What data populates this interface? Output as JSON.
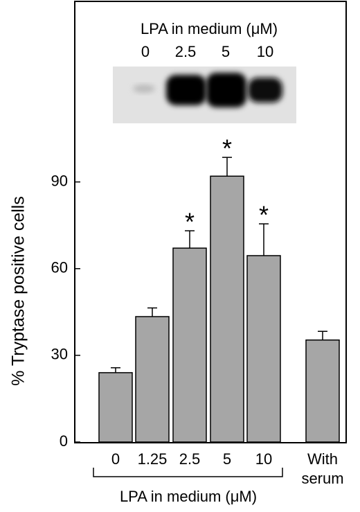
{
  "chart_data": {
    "type": "bar",
    "ylabel": "% Tryptase positive cells",
    "xlabel": "LPA in medium (μM)",
    "categories": [
      "0",
      "1.25",
      "2.5",
      "5",
      "10",
      "With serum"
    ],
    "values": [
      24,
      43.4,
      67.1,
      92,
      64.5,
      35.3
    ],
    "errors": [
      1.7,
      3,
      6,
      6.5,
      11,
      3
    ],
    "significance": [
      null,
      null,
      "*",
      "*",
      "*",
      null
    ],
    "color": "#a6a6a6",
    "ylim": [
      0,
      152
    ],
    "yticks": [
      0,
      30,
      60,
      90
    ],
    "inset_title": "LPA in medium (μM)",
    "inset_lanes": [
      "0",
      "2.5",
      "5",
      "10"
    ]
  }
}
